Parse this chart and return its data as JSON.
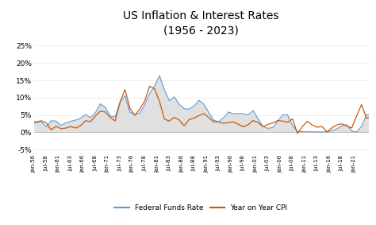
{
  "title": "US Inflation & Interest Rates\n(1956 - 2023)",
  "title_fontsize": 10,
  "background_color": "#ffffff",
  "plot_bg_color": "#ffffff",
  "ffr_color": "#5b9bd5",
  "cpi_color": "#c55a11",
  "fill_color": "#e0e0e0",
  "ylim": [
    -0.06,
    0.265
  ],
  "yticks": [
    -0.05,
    0.0,
    0.05,
    0.1,
    0.15,
    0.2,
    0.25
  ],
  "ytick_labels": [
    "-5%",
    "0%",
    "5%",
    "10%",
    "15%",
    "20%",
    "25%"
  ],
  "legend_labels": [
    "Federal Funds Rate",
    "Year on Year CPI"
  ],
  "xtick_labels": [
    "Jan-56",
    "Jul-58",
    "Jan-61",
    "Jul-63",
    "Jan-66",
    "Jul-68",
    "Jan-71",
    "Jul-73",
    "Jan-76",
    "Jul-78",
    "Jan-81",
    "Jul-83",
    "Jan-86",
    "Jul-88",
    "Jan-91",
    "Jul-93",
    "Jan-96",
    "Jul-98",
    "Jan-01",
    "Jul-03",
    "Jan-06",
    "Jul-08",
    "Jan-11",
    "Jul-13",
    "Jan-16",
    "Jul-18",
    "Jan-21"
  ],
  "ffr_years": [
    1956,
    1957,
    1958,
    1959,
    1960,
    1961,
    1962,
    1963,
    1964,
    1965,
    1966,
    1967,
    1968,
    1969,
    1970,
    1971,
    1972,
    1973,
    1974,
    1975,
    1976,
    1977,
    1978,
    1979,
    1980,
    1981,
    1982,
    1983,
    1984,
    1985,
    1986,
    1987,
    1988,
    1989,
    1990,
    1991,
    1992,
    1993,
    1994,
    1995,
    1996,
    1997,
    1998,
    1999,
    2000,
    2001,
    2002,
    2003,
    2004,
    2005,
    2006,
    2007,
    2008,
    2009,
    2010,
    2011,
    2012,
    2013,
    2014,
    2015,
    2016,
    2017,
    2018,
    2019,
    2020,
    2021,
    2022,
    2023
  ],
  "ffr_vals": [
    2.73,
    3.11,
    1.57,
    3.31,
    3.22,
    1.96,
    2.68,
    3.18,
    3.5,
    4.07,
    5.11,
    4.22,
    5.66,
    8.21,
    7.18,
    4.67,
    4.44,
    8.74,
    10.51,
    5.82,
    5.05,
    5.54,
    7.93,
    11.19,
    13.35,
    16.38,
    12.24,
    9.09,
    10.23,
    8.1,
    6.81,
    6.66,
    7.57,
    9.21,
    8.1,
    5.69,
    3.52,
    3.02,
    4.21,
    5.83,
    5.3,
    5.46,
    5.35,
    5.0,
    6.24,
    3.88,
    1.67,
    1.13,
    1.35,
    3.22,
    5.02,
    5.02,
    1.93,
    0.24,
    0.18,
    0.1,
    0.14,
    0.11,
    0.09,
    0.13,
    0.4,
    1.0,
    1.83,
    2.16,
    0.36,
    0.08,
    1.68,
    5.02
  ],
  "cpi_years": [
    1956,
    1957,
    1958,
    1959,
    1960,
    1961,
    1962,
    1963,
    1964,
    1965,
    1966,
    1967,
    1968,
    1969,
    1970,
    1971,
    1972,
    1973,
    1974,
    1975,
    1976,
    1977,
    1978,
    1979,
    1980,
    1981,
    1982,
    1983,
    1984,
    1985,
    1986,
    1987,
    1988,
    1989,
    1990,
    1991,
    1992,
    1993,
    1994,
    1995,
    1996,
    1997,
    1998,
    1999,
    2000,
    2001,
    2002,
    2003,
    2004,
    2005,
    2006,
    2007,
    2008,
    2009,
    2010,
    2011,
    2012,
    2013,
    2014,
    2015,
    2016,
    2017,
    2018,
    2019,
    2020,
    2021,
    2022,
    2023
  ],
  "cpi_vals": [
    2.99,
    3.31,
    2.73,
    0.69,
    1.72,
    1.01,
    1.2,
    1.65,
    1.19,
    1.92,
    3.35,
    3.04,
    4.72,
    6.11,
    5.84,
    4.3,
    3.27,
    8.71,
    12.34,
    6.94,
    4.86,
    6.7,
    9.02,
    13.29,
    12.52,
    8.92,
    3.83,
    3.21,
    4.32,
    3.56,
    1.86,
    3.65,
    4.08,
    4.83,
    5.4,
    4.21,
    3.01,
    2.99,
    2.56,
    2.83,
    2.93,
    2.34,
    1.55,
    2.19,
    3.38,
    2.83,
    1.59,
    2.27,
    2.68,
    3.39,
    3.23,
    2.85,
    3.84,
    -0.36,
    1.64,
    3.16,
    2.07,
    1.46,
    1.62,
    0.12,
    1.26,
    2.13,
    2.44,
    1.81,
    1.23,
    4.7,
    8.0,
    4.12
  ]
}
